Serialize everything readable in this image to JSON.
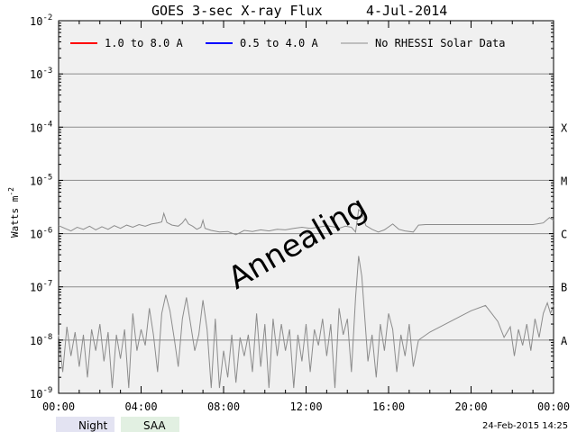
{
  "chart_data": {
    "type": "line",
    "title": "GOES 3-sec X-ray Flux",
    "date": "4-Jul-2014",
    "xlabel": "",
    "ylabel": "Watts m",
    "ylabel_exp": "-2",
    "yscale": "log",
    "ylim_exp": [
      -9,
      -2
    ],
    "y_ticks": [
      {
        "base": "10",
        "exp": "-2",
        "e": -2
      },
      {
        "base": "10",
        "exp": "-3",
        "e": -3
      },
      {
        "base": "10",
        "exp": "-4",
        "e": -4
      },
      {
        "base": "10",
        "exp": "-5",
        "e": -5
      },
      {
        "base": "10",
        "exp": "-6",
        "e": -6
      },
      {
        "base": "10",
        "exp": "-7",
        "e": -7
      },
      {
        "base": "10",
        "exp": "-8",
        "e": -8
      },
      {
        "base": "10",
        "exp": "-9",
        "e": -9
      }
    ],
    "x_ticks": [
      "00:00",
      "04:00",
      "08:00",
      "12:00",
      "16:00",
      "20:00",
      "00:00"
    ],
    "xlim_hours": [
      0,
      24
    ],
    "flare_classes": [
      {
        "label": "X",
        "e": -4
      },
      {
        "label": "M",
        "e": -5
      },
      {
        "label": "C",
        "e": -6
      },
      {
        "label": "B",
        "e": -7
      },
      {
        "label": "A",
        "e": -8
      }
    ],
    "legend": [
      {
        "label": "1.0 to 8.0 A",
        "color": "#ff0000"
      },
      {
        "label": "0.5 to 4.0 A",
        "color": "#0000ff"
      },
      {
        "label": "No RHESSI Solar Data",
        "color": "#8c8c8c"
      }
    ],
    "annotation": "Annealing",
    "series": [
      {
        "name": "1.0 to 8.0 A (upper trace)",
        "color": "#8c8c8c",
        "points": [
          [
            0.0,
            -5.85
          ],
          [
            0.3,
            -5.9
          ],
          [
            0.6,
            -5.95
          ],
          [
            0.9,
            -5.88
          ],
          [
            1.2,
            -5.92
          ],
          [
            1.5,
            -5.86
          ],
          [
            1.8,
            -5.93
          ],
          [
            2.1,
            -5.87
          ],
          [
            2.4,
            -5.92
          ],
          [
            2.7,
            -5.85
          ],
          [
            3.0,
            -5.9
          ],
          [
            3.3,
            -5.84
          ],
          [
            3.6,
            -5.88
          ],
          [
            3.9,
            -5.83
          ],
          [
            4.2,
            -5.86
          ],
          [
            4.5,
            -5.82
          ],
          [
            4.8,
            -5.8
          ],
          [
            5.0,
            -5.78
          ],
          [
            5.1,
            -5.62
          ],
          [
            5.25,
            -5.79
          ],
          [
            5.5,
            -5.84
          ],
          [
            5.8,
            -5.86
          ],
          [
            6.0,
            -5.8
          ],
          [
            6.15,
            -5.72
          ],
          [
            6.3,
            -5.82
          ],
          [
            6.5,
            -5.86
          ],
          [
            6.7,
            -5.92
          ],
          [
            6.9,
            -5.88
          ],
          [
            7.0,
            -5.75
          ],
          [
            7.1,
            -5.9
          ],
          [
            7.4,
            -5.94
          ],
          [
            7.8,
            -5.97
          ],
          [
            8.2,
            -5.96
          ],
          [
            8.6,
            -6.02
          ],
          [
            9.0,
            -5.94
          ],
          [
            9.4,
            -5.96
          ],
          [
            9.8,
            -5.93
          ],
          [
            10.2,
            -5.95
          ],
          [
            10.6,
            -5.92
          ],
          [
            11.0,
            -5.93
          ],
          [
            11.4,
            -5.9
          ],
          [
            11.8,
            -5.88
          ],
          [
            12.2,
            -5.9
          ],
          [
            12.6,
            -5.88
          ],
          [
            13.0,
            -5.85
          ],
          [
            13.3,
            -5.87
          ],
          [
            13.6,
            -5.9
          ],
          [
            13.9,
            -5.86
          ],
          [
            14.2,
            -5.88
          ],
          [
            14.4,
            -5.97
          ],
          [
            14.55,
            -5.55
          ],
          [
            14.7,
            -5.6
          ],
          [
            14.9,
            -5.85
          ],
          [
            15.2,
            -5.92
          ],
          [
            15.5,
            -5.97
          ],
          [
            15.8,
            -5.93
          ],
          [
            16.2,
            -5.82
          ],
          [
            16.5,
            -5.92
          ],
          [
            16.8,
            -5.95
          ],
          [
            17.2,
            -5.97
          ],
          [
            17.45,
            -5.84
          ],
          [
            17.8,
            -5.83
          ],
          [
            18.5,
            -5.83
          ],
          [
            19.5,
            -5.83
          ],
          [
            20.5,
            -5.83
          ],
          [
            21.5,
            -5.83
          ],
          [
            22.5,
            -5.83
          ],
          [
            23.0,
            -5.83
          ],
          [
            23.5,
            -5.8
          ],
          [
            23.8,
            -5.7
          ],
          [
            24.0,
            -5.75
          ]
        ]
      },
      {
        "name": "0.5 to 4.0 A (lower trace)",
        "color": "#8c8c8c",
        "points": [
          [
            0.0,
            -7.9
          ],
          [
            0.2,
            -8.6
          ],
          [
            0.4,
            -7.75
          ],
          [
            0.6,
            -8.3
          ],
          [
            0.8,
            -7.85
          ],
          [
            1.0,
            -8.5
          ],
          [
            1.2,
            -7.9
          ],
          [
            1.4,
            -8.7
          ],
          [
            1.6,
            -7.8
          ],
          [
            1.8,
            -8.2
          ],
          [
            2.0,
            -7.7
          ],
          [
            2.2,
            -8.4
          ],
          [
            2.4,
            -7.85
          ],
          [
            2.6,
            -8.9
          ],
          [
            2.8,
            -7.9
          ],
          [
            3.0,
            -8.35
          ],
          [
            3.2,
            -7.8
          ],
          [
            3.4,
            -8.9
          ],
          [
            3.6,
            -7.5
          ],
          [
            3.8,
            -8.2
          ],
          [
            4.0,
            -7.8
          ],
          [
            4.2,
            -8.1
          ],
          [
            4.4,
            -7.4
          ],
          [
            4.6,
            -7.9
          ],
          [
            4.8,
            -8.6
          ],
          [
            5.0,
            -7.5
          ],
          [
            5.2,
            -7.15
          ],
          [
            5.4,
            -7.45
          ],
          [
            5.6,
            -7.95
          ],
          [
            5.8,
            -8.5
          ],
          [
            6.0,
            -7.6
          ],
          [
            6.2,
            -7.2
          ],
          [
            6.4,
            -7.7
          ],
          [
            6.6,
            -8.2
          ],
          [
            6.8,
            -7.9
          ],
          [
            7.0,
            -7.25
          ],
          [
            7.2,
            -7.8
          ],
          [
            7.4,
            -8.9
          ],
          [
            7.6,
            -7.6
          ],
          [
            7.8,
            -8.9
          ],
          [
            8.0,
            -8.2
          ],
          [
            8.2,
            -8.7
          ],
          [
            8.4,
            -7.9
          ],
          [
            8.6,
            -8.8
          ],
          [
            8.8,
            -7.95
          ],
          [
            9.0,
            -8.3
          ],
          [
            9.2,
            -7.9
          ],
          [
            9.4,
            -8.6
          ],
          [
            9.6,
            -7.5
          ],
          [
            9.8,
            -8.5
          ],
          [
            10.0,
            -7.7
          ],
          [
            10.2,
            -8.9
          ],
          [
            10.4,
            -7.6
          ],
          [
            10.6,
            -8.3
          ],
          [
            10.8,
            -7.7
          ],
          [
            11.0,
            -8.2
          ],
          [
            11.2,
            -7.8
          ],
          [
            11.4,
            -8.9
          ],
          [
            11.6,
            -7.9
          ],
          [
            11.8,
            -8.4
          ],
          [
            12.0,
            -7.7
          ],
          [
            12.2,
            -8.6
          ],
          [
            12.4,
            -7.8
          ],
          [
            12.6,
            -8.1
          ],
          [
            12.8,
            -7.6
          ],
          [
            13.0,
            -8.3
          ],
          [
            13.2,
            -7.7
          ],
          [
            13.4,
            -8.9
          ],
          [
            13.6,
            -7.4
          ],
          [
            13.8,
            -7.9
          ],
          [
            14.0,
            -7.6
          ],
          [
            14.2,
            -8.6
          ],
          [
            14.4,
            -7.2
          ],
          [
            14.55,
            -6.42
          ],
          [
            14.7,
            -6.8
          ],
          [
            14.85,
            -7.6
          ],
          [
            15.0,
            -8.4
          ],
          [
            15.2,
            -7.9
          ],
          [
            15.4,
            -8.7
          ],
          [
            15.6,
            -7.7
          ],
          [
            15.8,
            -8.2
          ],
          [
            16.0,
            -7.5
          ],
          [
            16.2,
            -7.8
          ],
          [
            16.4,
            -8.6
          ],
          [
            16.6,
            -7.9
          ],
          [
            16.8,
            -8.3
          ],
          [
            17.0,
            -7.7
          ],
          [
            17.2,
            -8.5
          ],
          [
            17.45,
            -8.0
          ],
          [
            18.0,
            -7.85
          ],
          [
            19.0,
            -7.65
          ],
          [
            20.0,
            -7.45
          ],
          [
            20.7,
            -7.35
          ],
          [
            21.0,
            -7.5
          ],
          [
            21.3,
            -7.65
          ],
          [
            21.6,
            -7.95
          ],
          [
            21.9,
            -7.75
          ],
          [
            22.1,
            -8.3
          ],
          [
            22.3,
            -7.8
          ],
          [
            22.5,
            -8.1
          ],
          [
            22.7,
            -7.7
          ],
          [
            22.9,
            -8.2
          ],
          [
            23.1,
            -7.6
          ],
          [
            23.3,
            -7.95
          ],
          [
            23.5,
            -7.5
          ],
          [
            23.7,
            -7.3
          ],
          [
            23.85,
            -7.5
          ],
          [
            24.0,
            -7.35
          ]
        ]
      }
    ]
  },
  "footer": {
    "night_label": "Night",
    "saa_label": "SAA",
    "timestamp": "24-Feb-2015 14:25"
  },
  "colors": {
    "plot_bg": "#f0f0f0",
    "grid": "#8c8c8c",
    "trace": "#8c8c8c",
    "night_box": "#e3e3f2",
    "saa_box": "#e2f0e2"
  }
}
